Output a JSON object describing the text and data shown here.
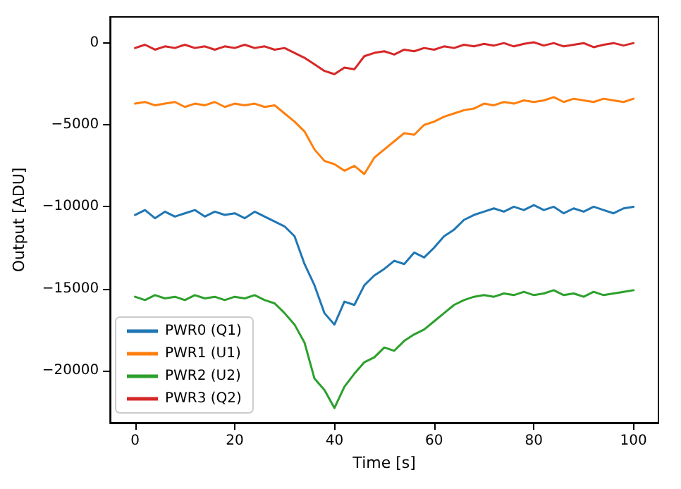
{
  "chart_data": {
    "type": "line",
    "xlabel": "Time [s]",
    "ylabel": "Output [ADU]",
    "x": [
      0,
      2,
      4,
      6,
      8,
      10,
      12,
      14,
      16,
      18,
      20,
      22,
      24,
      26,
      28,
      30,
      32,
      34,
      36,
      38,
      40,
      42,
      44,
      46,
      48,
      50,
      52,
      54,
      56,
      58,
      60,
      62,
      64,
      66,
      68,
      70,
      72,
      74,
      76,
      78,
      80,
      82,
      84,
      86,
      88,
      90,
      92,
      94,
      96,
      98,
      100
    ],
    "series": [
      {
        "name": "PWR0 (Q1)",
        "color": "#1f77b4",
        "values": [
          -10500,
          -10200,
          -10700,
          -10300,
          -10600,
          -10400,
          -10200,
          -10600,
          -10300,
          -10500,
          -10400,
          -10700,
          -10300,
          -10600,
          -10900,
          -11200,
          -11800,
          -13500,
          -14800,
          -16500,
          -17200,
          -15800,
          -16000,
          -14800,
          -14200,
          -13800,
          -13300,
          -13500,
          -12800,
          -13100,
          -12500,
          -11800,
          -11400,
          -10800,
          -10500,
          -10300,
          -10100,
          -10300,
          -10000,
          -10200,
          -9900,
          -10200,
          -10000,
          -10400,
          -10100,
          -10300,
          -10000,
          -10200,
          -10400,
          -10100,
          -10000
        ]
      },
      {
        "name": "PWR1 (U1)",
        "color": "#ff7f0e",
        "values": [
          -3700,
          -3600,
          -3800,
          -3700,
          -3600,
          -3900,
          -3700,
          -3800,
          -3600,
          -3900,
          -3700,
          -3800,
          -3700,
          -3900,
          -3800,
          -4300,
          -4800,
          -5400,
          -6500,
          -7200,
          -7400,
          -7800,
          -7500,
          -8000,
          -7000,
          -6500,
          -6000,
          -5500,
          -5600,
          -5000,
          -4800,
          -4500,
          -4300,
          -4100,
          -4000,
          -3700,
          -3800,
          -3600,
          -3700,
          -3500,
          -3600,
          -3500,
          -3300,
          -3600,
          -3400,
          -3500,
          -3600,
          -3400,
          -3500,
          -3600,
          -3400
        ]
      },
      {
        "name": "PWR2 (U2)",
        "color": "#2ca02c",
        "values": [
          -15500,
          -15700,
          -15400,
          -15600,
          -15500,
          -15700,
          -15400,
          -15600,
          -15500,
          -15700,
          -15500,
          -15600,
          -15400,
          -15700,
          -15900,
          -16500,
          -17200,
          -18300,
          -20500,
          -21200,
          -22300,
          -21000,
          -20200,
          -19500,
          -19200,
          -18600,
          -18800,
          -18200,
          -17800,
          -17500,
          -17000,
          -16500,
          -16000,
          -15700,
          -15500,
          -15400,
          -15500,
          -15300,
          -15400,
          -15200,
          -15400,
          -15300,
          -15100,
          -15400,
          -15300,
          -15500,
          -15200,
          -15400,
          -15300,
          -15200,
          -15100
        ]
      },
      {
        "name": "PWR3 (Q2)",
        "color": "#d62728",
        "values": [
          -300,
          -100,
          -400,
          -200,
          -300,
          -100,
          -300,
          -200,
          -400,
          -200,
          -300,
          -100,
          -300,
          -200,
          -400,
          -300,
          -600,
          -900,
          -1300,
          -1700,
          -1900,
          -1500,
          -1600,
          -800,
          -600,
          -500,
          -700,
          -400,
          -500,
          -300,
          -400,
          -200,
          -300,
          -100,
          -200,
          -50,
          -150,
          0,
          -200,
          -50,
          50,
          -150,
          0,
          -200,
          -100,
          0,
          -250,
          -100,
          0,
          -150,
          0
        ]
      }
    ],
    "xlim": [
      -5,
      105
    ],
    "xticks": [
      0,
      20,
      40,
      60,
      80,
      100
    ],
    "ylim": [
      -23200,
      1600
    ],
    "yticks": [
      -20000,
      -15000,
      -10000,
      -5000,
      0
    ],
    "grid": false,
    "legend": "bottom left"
  }
}
